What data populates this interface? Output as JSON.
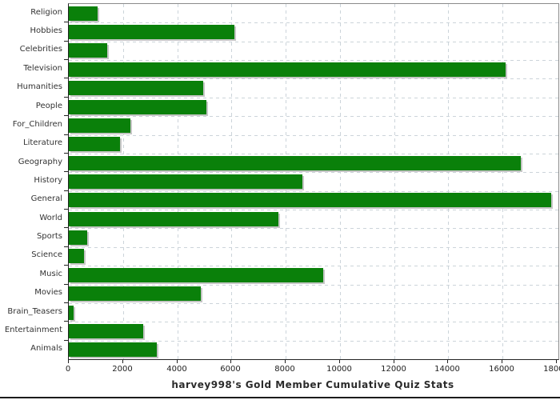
{
  "chart_data": {
    "type": "bar",
    "orientation": "horizontal",
    "title": "harvey998's Gold Member Cumulative Quiz Stats",
    "categories": [
      "Religion",
      "Hobbies",
      "Celebrities",
      "Television",
      "Humanities",
      "People",
      "For_Children",
      "Literature",
      "Geography",
      "History",
      "General",
      "World",
      "Sports",
      "Science",
      "Music",
      "Movies",
      "Brain_Teasers",
      "Entertainment",
      "Animals"
    ],
    "values": [
      1060,
      6100,
      1420,
      16100,
      4950,
      5070,
      2270,
      1890,
      16670,
      8620,
      17790,
      7730,
      680,
      560,
      9380,
      4870,
      180,
      2740,
      3250
    ],
    "xlim": [
      0,
      18000
    ],
    "x_ticks": [
      0,
      2000,
      4000,
      6000,
      8000,
      10000,
      12000,
      14000,
      16000,
      18000
    ],
    "grid": "dashed",
    "legend": "none",
    "colors": {
      "bar": "#0a800a",
      "bar_shadow": "#c6c6c6",
      "gridline": "#ccd4da",
      "axis_dark": "#222222",
      "axis_light": "#8a8a8a",
      "label_text": "#333333",
      "title_text": "#2b2b2b",
      "background": "#ffffff"
    }
  }
}
